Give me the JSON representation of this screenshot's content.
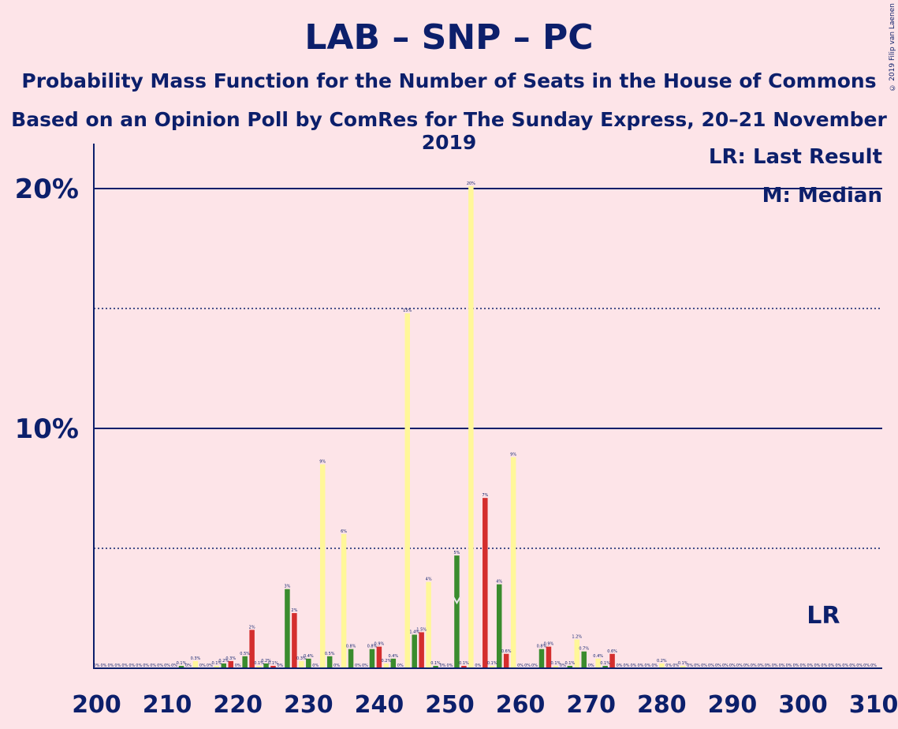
{
  "title": "LAB – SNP – PC",
  "subtitle": "Probability Mass Function for the Number of Seats in the House of Commons",
  "subtitle2": "Based on an Opinion Poll by ComRes for The Sunday Express, 20–21 November 2019",
  "copyright": "© 2019 Filip van Laenen",
  "legend": {
    "last_result": "LR: Last Result",
    "median": "M: Median"
  },
  "lr_label": "LR",
  "colors": {
    "background": "#FDE4E8",
    "axis": "#0C1F6B",
    "green": "#3A8C2E",
    "red": "#D42E2E",
    "yellow": "#FFF799"
  },
  "chart_data": {
    "type": "bar",
    "x_range": [
      200,
      310
    ],
    "xticks": [
      200,
      210,
      220,
      230,
      240,
      250,
      260,
      270,
      280,
      290,
      300,
      310
    ],
    "y_range": [
      0,
      22
    ],
    "yticks_labeled": [
      {
        "value": 10,
        "label": "10%"
      },
      {
        "value": 20,
        "label": "20%"
      }
    ],
    "yticks_dotted": [
      5,
      15
    ],
    "median": 251,
    "last_result": 302,
    "bars": [
      {
        "x": 200,
        "y": 0,
        "label": "0%"
      },
      {
        "x": 201,
        "y": 0,
        "label": "0%"
      },
      {
        "x": 202,
        "y": 0,
        "label": "0%"
      },
      {
        "x": 203,
        "y": 0,
        "label": "0%"
      },
      {
        "x": 204,
        "y": 0,
        "label": "0%"
      },
      {
        "x": 205,
        "y": 0,
        "label": "0%"
      },
      {
        "x": 206,
        "y": 0,
        "label": "0%"
      },
      {
        "x": 207,
        "y": 0,
        "label": "0%"
      },
      {
        "x": 208,
        "y": 0,
        "label": "0%"
      },
      {
        "x": 209,
        "y": 0,
        "label": "0%"
      },
      {
        "x": 210,
        "y": 0,
        "label": "0%"
      },
      {
        "x": 211,
        "y": 0,
        "label": "0%"
      },
      {
        "x": 212,
        "y": 0.1,
        "label": "0.1%",
        "color": "green"
      },
      {
        "x": 213,
        "y": 0,
        "label": "0%"
      },
      {
        "x": 214,
        "y": 0.3,
        "label": "0.3%",
        "color": "yellow"
      },
      {
        "x": 215,
        "y": 0,
        "label": "0%"
      },
      {
        "x": 216,
        "y": 0,
        "label": "0%"
      },
      {
        "x": 217,
        "y": 0.1,
        "label": "0.1%",
        "color": "yellow"
      },
      {
        "x": 218,
        "y": 0.2,
        "label": "0.2%",
        "color": "green"
      },
      {
        "x": 219,
        "y": 0.3,
        "label": "0.3%",
        "color": "red"
      },
      {
        "x": 220,
        "y": 0,
        "label": "0%"
      },
      {
        "x": 221,
        "y": 0.5,
        "label": "0.5%",
        "color": "green"
      },
      {
        "x": 222,
        "y": 1.6,
        "label": "2%",
        "color": "red"
      },
      {
        "x": 223,
        "y": 0.1,
        "label": "0.1%",
        "color": "yellow"
      },
      {
        "x": 224,
        "y": 0.2,
        "label": "0.2%",
        "color": "green"
      },
      {
        "x": 225,
        "y": 0.1,
        "label": "0.1%",
        "color": "red"
      },
      {
        "x": 226,
        "y": 0,
        "label": "0%"
      },
      {
        "x": 227,
        "y": 3.3,
        "label": "3%",
        "color": "green"
      },
      {
        "x": 228,
        "y": 2.3,
        "label": "2%",
        "color": "red"
      },
      {
        "x": 229,
        "y": 0.3,
        "label": "0.3%",
        "color": "yellow"
      },
      {
        "x": 230,
        "y": 0.4,
        "label": "0.4%",
        "color": "green"
      },
      {
        "x": 231,
        "y": 0,
        "label": "0%"
      },
      {
        "x": 232,
        "y": 8.5,
        "label": "9%",
        "color": "yellow"
      },
      {
        "x": 233,
        "y": 0.5,
        "label": "0.5%",
        "color": "green"
      },
      {
        "x": 234,
        "y": 0,
        "label": "0%"
      },
      {
        "x": 235,
        "y": 5.6,
        "label": "6%",
        "color": "yellow"
      },
      {
        "x": 236,
        "y": 0.8,
        "label": "0.8%",
        "color": "green"
      },
      {
        "x": 237,
        "y": 0,
        "label": "0%"
      },
      {
        "x": 238,
        "y": 0,
        "label": "0%"
      },
      {
        "x": 239,
        "y": 0.8,
        "label": "0.8%",
        "color": "green"
      },
      {
        "x": 240,
        "y": 0.9,
        "label": "0.9%",
        "color": "red"
      },
      {
        "x": 241,
        "y": 0.2,
        "label": "0.2%",
        "color": "yellow"
      },
      {
        "x": 242,
        "y": 0.4,
        "label": "0.4%",
        "color": "green"
      },
      {
        "x": 243,
        "y": 0,
        "label": "0%"
      },
      {
        "x": 244,
        "y": 14.8,
        "label": "15%",
        "color": "yellow"
      },
      {
        "x": 245,
        "y": 1.4,
        "label": "1.4%",
        "color": "green"
      },
      {
        "x": 246,
        "y": 1.5,
        "label": "1.5%",
        "color": "red"
      },
      {
        "x": 247,
        "y": 3.6,
        "label": "4%",
        "color": "yellow"
      },
      {
        "x": 248,
        "y": 0.1,
        "label": "0.1%",
        "color": "green"
      },
      {
        "x": 249,
        "y": 0,
        "label": "0%"
      },
      {
        "x": 250,
        "y": 0,
        "label": "0%"
      },
      {
        "x": 251,
        "y": 4.7,
        "label": "5%",
        "color": "green"
      },
      {
        "x": 252,
        "y": 0.1,
        "label": "0.1%",
        "color": "red"
      },
      {
        "x": 253,
        "y": 20.1,
        "label": "20%",
        "color": "yellow"
      },
      {
        "x": 254,
        "y": 0,
        "label": "0%"
      },
      {
        "x": 255,
        "y": 7.1,
        "label": "7%",
        "color": "red"
      },
      {
        "x": 256,
        "y": 0.1,
        "label": "0.1%",
        "color": "yellow"
      },
      {
        "x": 257,
        "y": 3.5,
        "label": "4%",
        "color": "green"
      },
      {
        "x": 258,
        "y": 0.6,
        "label": "0.6%",
        "color": "red"
      },
      {
        "x": 259,
        "y": 8.8,
        "label": "9%",
        "color": "yellow"
      },
      {
        "x": 260,
        "y": 0,
        "label": "0%"
      },
      {
        "x": 261,
        "y": 0,
        "label": "0%"
      },
      {
        "x": 262,
        "y": 0,
        "label": "0%"
      },
      {
        "x": 263,
        "y": 0.8,
        "label": "0.8%",
        "color": "green"
      },
      {
        "x": 264,
        "y": 0.9,
        "label": "0.9%",
        "color": "red"
      },
      {
        "x": 265,
        "y": 0.1,
        "label": "0.1%",
        "color": "yellow"
      },
      {
        "x": 266,
        "y": 0,
        "label": "0%"
      },
      {
        "x": 267,
        "y": 0.1,
        "label": "0.1%",
        "color": "green"
      },
      {
        "x": 268,
        "y": 1.2,
        "label": "1.2%",
        "color": "yellow"
      },
      {
        "x": 269,
        "y": 0.7,
        "label": "0.7%",
        "color": "green"
      },
      {
        "x": 270,
        "y": 0,
        "label": "0%"
      },
      {
        "x": 271,
        "y": 0.4,
        "label": "0.4%",
        "color": "yellow"
      },
      {
        "x": 272,
        "y": 0.1,
        "label": "0.1%",
        "color": "green"
      },
      {
        "x": 273,
        "y": 0.6,
        "label": "0.6%",
        "color": "red"
      },
      {
        "x": 274,
        "y": 0,
        "label": "0%"
      },
      {
        "x": 275,
        "y": 0,
        "label": "0%"
      },
      {
        "x": 276,
        "y": 0,
        "label": "0%"
      },
      {
        "x": 277,
        "y": 0,
        "label": "0%"
      },
      {
        "x": 278,
        "y": 0,
        "label": "0%"
      },
      {
        "x": 279,
        "y": 0,
        "label": "0%"
      },
      {
        "x": 280,
        "y": 0.2,
        "label": "0.2%",
        "color": "yellow"
      },
      {
        "x": 281,
        "y": 0,
        "label": "0%"
      },
      {
        "x": 282,
        "y": 0,
        "label": "0%"
      },
      {
        "x": 283,
        "y": 0.1,
        "label": "0.1%",
        "color": "yellow"
      },
      {
        "x": 284,
        "y": 0,
        "label": "0%"
      },
      {
        "x": 285,
        "y": 0,
        "label": "0%"
      },
      {
        "x": 286,
        "y": 0,
        "label": "0%"
      },
      {
        "x": 287,
        "y": 0,
        "label": "0%"
      },
      {
        "x": 288,
        "y": 0,
        "label": "0%"
      },
      {
        "x": 289,
        "y": 0,
        "label": "0%"
      },
      {
        "x": 290,
        "y": 0,
        "label": "0%"
      },
      {
        "x": 291,
        "y": 0,
        "label": "0%"
      },
      {
        "x": 292,
        "y": 0,
        "label": "0%"
      },
      {
        "x": 293,
        "y": 0,
        "label": "0%"
      },
      {
        "x": 294,
        "y": 0,
        "label": "0%"
      },
      {
        "x": 295,
        "y": 0,
        "label": "0%"
      },
      {
        "x": 296,
        "y": 0,
        "label": "0%"
      },
      {
        "x": 297,
        "y": 0,
        "label": "0%"
      },
      {
        "x": 298,
        "y": 0,
        "label": "0%"
      },
      {
        "x": 299,
        "y": 0,
        "label": "0%"
      },
      {
        "x": 300,
        "y": 0,
        "label": "0%"
      },
      {
        "x": 301,
        "y": 0,
        "label": "0%"
      },
      {
        "x": 302,
        "y": 0,
        "label": "0%"
      },
      {
        "x": 303,
        "y": 0,
        "label": "0%"
      },
      {
        "x": 304,
        "y": 0,
        "label": "0%"
      },
      {
        "x": 305,
        "y": 0,
        "label": "0%"
      },
      {
        "x": 306,
        "y": 0,
        "label": "0%"
      },
      {
        "x": 307,
        "y": 0,
        "label": "0%"
      },
      {
        "x": 308,
        "y": 0,
        "label": "0%"
      },
      {
        "x": 309,
        "y": 0,
        "label": "0%"
      },
      {
        "x": 310,
        "y": 0,
        "label": "0%"
      }
    ]
  }
}
